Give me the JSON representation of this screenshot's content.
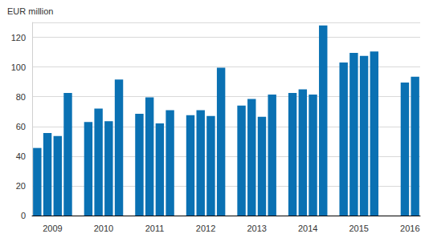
{
  "chart_data": {
    "type": "bar",
    "y_label": "EUR million",
    "categories": [
      null,
      "2009",
      null,
      null,
      null,
      null,
      "2010",
      null,
      null,
      null,
      null,
      "2011",
      null,
      null,
      null,
      null,
      "2012",
      null,
      null,
      null,
      null,
      "2013",
      null,
      null,
      null,
      null,
      "2014",
      null,
      null,
      null,
      null,
      "2015",
      null,
      null,
      null,
      null,
      "2016",
      null
    ],
    "values": [
      45.5,
      55.5,
      53.5,
      82.5,
      null,
      63,
      72,
      63.5,
      91.5,
      null,
      68.5,
      79.5,
      62,
      71,
      null,
      67.5,
      71,
      67,
      99.5,
      null,
      74,
      78.5,
      66.5,
      81.5,
      null,
      82.5,
      85,
      81.5,
      128,
      null,
      103,
      109.5,
      107.5,
      110.5,
      null,
      null,
      89.5,
      93.5
    ],
    "color": "#0a71b3",
    "ylim": [
      0,
      130
    ],
    "yticks": [
      0,
      20,
      40,
      60,
      80,
      100,
      120
    ],
    "grid": true
  }
}
